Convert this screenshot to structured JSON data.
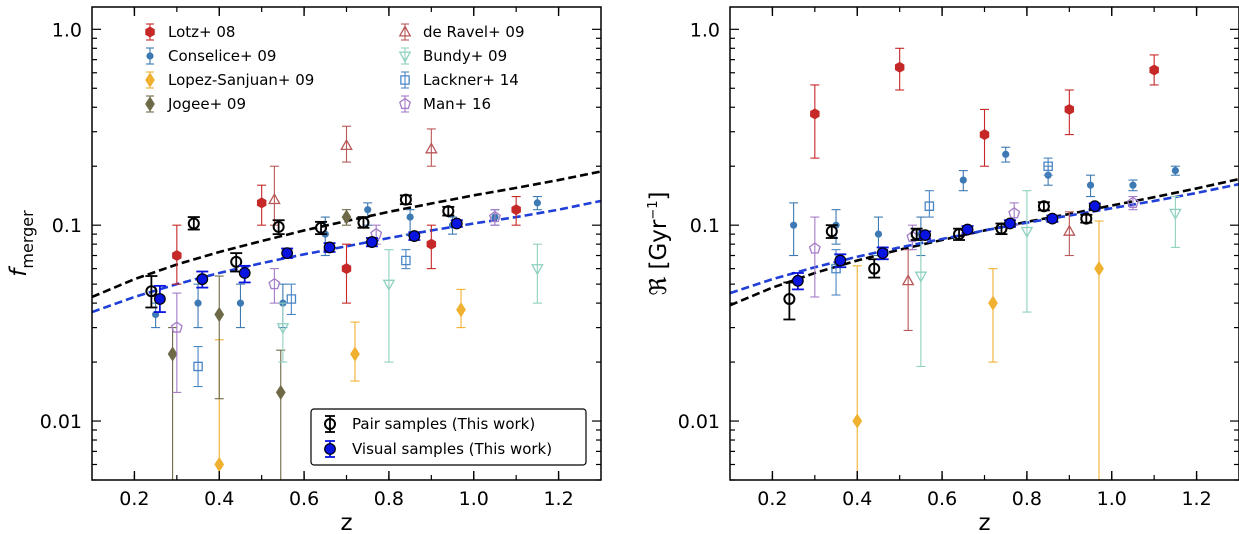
{
  "colors": {
    "lotz": "#c62828",
    "conselice": "#3d7ab3",
    "lopez": "#f0b030",
    "jogee": "#6e6a48",
    "deravel": "#b85858",
    "bundy": "#8fd0c0",
    "lackner": "#4a86c5",
    "man": "#a57cc8",
    "pair": "#000000",
    "visual": "#0a14e0",
    "fit_pair": "#000000",
    "fit_visual": "#1f3fd8"
  },
  "legend": {
    "entries": [
      {
        "key": "lotz",
        "label": "Lotz+ 08",
        "marker": "hexagon-filled"
      },
      {
        "key": "conselice",
        "label": "Conselice+ 09",
        "marker": "circle-filled-small"
      },
      {
        "key": "lopez",
        "label": "Lopez-Sanjuan+ 09",
        "marker": "diamond-filled"
      },
      {
        "key": "jogee",
        "label": "Jogee+ 09",
        "marker": "diamond-filled"
      },
      {
        "key": "deravel",
        "label": "de Ravel+ 09",
        "marker": "triangle-up-open"
      },
      {
        "key": "bundy",
        "label": "Bundy+ 09",
        "marker": "triangle-down-open"
      },
      {
        "key": "lackner",
        "label": "Lackner+ 14",
        "marker": "square-open"
      },
      {
        "key": "man",
        "label": "Man+ 16",
        "marker": "pentagon-open"
      }
    ],
    "this_work": [
      {
        "key": "pair",
        "label": "Pair samples (This work)",
        "marker": "circle-open"
      },
      {
        "key": "visual",
        "label": "Visual samples (This work)",
        "marker": "circle-filled"
      }
    ]
  },
  "chart_data": [
    {
      "type": "scatter",
      "panel": "left",
      "xlabel": "z",
      "ylabel_main": "f",
      "ylabel_sub": "merger",
      "xlim": [
        0.1,
        1.3
      ],
      "ylim": [
        0.005,
        1.3
      ],
      "yscale": "log",
      "xticks": [
        "0.2",
        "0.4",
        "0.6",
        "0.8",
        "1.0",
        "1.2"
      ],
      "yticks": [
        "0.01",
        "0.1",
        "1.0"
      ],
      "series": [
        {
          "name": "Lotz+ 08",
          "key": "lotz",
          "points": [
            [
              0.3,
              0.07,
              0.05,
              0.1
            ],
            [
              0.5,
              0.13,
              0.1,
              0.16
            ],
            [
              0.7,
              0.06,
              0.04,
              0.08
            ],
            [
              0.9,
              0.08,
              0.06,
              0.1
            ],
            [
              1.1,
              0.12,
              0.1,
              0.14
            ]
          ]
        },
        {
          "name": "Conselice+ 09",
          "key": "conselice",
          "points": [
            [
              0.25,
              0.035,
              0.03,
              0.04
            ],
            [
              0.35,
              0.04,
              0.03,
              0.05
            ],
            [
              0.45,
              0.04,
              0.03,
              0.05
            ],
            [
              0.55,
              0.04,
              0.03,
              0.05
            ],
            [
              0.65,
              0.09,
              0.07,
              0.11
            ],
            [
              0.75,
              0.12,
              0.1,
              0.13
            ],
            [
              0.85,
              0.11,
              0.09,
              0.12
            ],
            [
              0.95,
              0.1,
              0.09,
              0.11
            ],
            [
              1.05,
              0.11,
              0.1,
              0.12
            ],
            [
              1.15,
              0.13,
              0.12,
              0.14
            ]
          ]
        },
        {
          "name": "Lopez-Sanjuan+ 09",
          "key": "lopez",
          "points": [
            [
              0.4,
              0.006,
              0.003,
              0.026
            ],
            [
              0.72,
              0.022,
              0.016,
              0.032
            ],
            [
              0.97,
              0.037,
              0.03,
              0.047
            ]
          ]
        },
        {
          "name": "Jogee+ 09",
          "key": "jogee",
          "points": [
            [
              0.29,
              0.022,
              0.003,
              0.03
            ],
            [
              0.4,
              0.035,
              0.013,
              0.055
            ],
            [
              0.545,
              0.014,
              0.003,
              0.023
            ],
            [
              0.7,
              0.11,
              0.1,
              0.12
            ]
          ]
        },
        {
          "name": "de Ravel+ 09",
          "key": "deravel",
          "points": [
            [
              0.53,
              0.135,
              0.1,
              0.2
            ],
            [
              0.7,
              0.255,
              0.21,
              0.32
            ],
            [
              0.9,
              0.245,
              0.2,
              0.31
            ]
          ]
        },
        {
          "name": "Bundy+ 09",
          "key": "bundy",
          "points": [
            [
              0.55,
              0.03,
              0.02,
              0.04
            ],
            [
              0.8,
              0.05,
              0.02,
              0.075
            ],
            [
              1.15,
              0.06,
              0.04,
              0.08
            ]
          ]
        },
        {
          "name": "Lackner+ 14",
          "key": "lackner",
          "points": [
            [
              0.35,
              0.019,
              0.015,
              0.024
            ],
            [
              0.57,
              0.042,
              0.035,
              0.05
            ],
            [
              0.84,
              0.066,
              0.06,
              0.075
            ]
          ]
        },
        {
          "name": "Man+ 16",
          "key": "man",
          "points": [
            [
              0.3,
              0.03,
              0.014,
              0.045
            ],
            [
              0.53,
              0.05,
              0.04,
              0.06
            ],
            [
              0.77,
              0.09,
              0.08,
              0.1
            ],
            [
              1.05,
              0.11,
              0.1,
              0.12
            ]
          ]
        },
        {
          "name": "Pair samples (This work)",
          "key": "pair",
          "points": [
            [
              0.24,
              0.046,
              0.038,
              0.055
            ],
            [
              0.34,
              0.102,
              0.095,
              0.11
            ],
            [
              0.44,
              0.065,
              0.058,
              0.072
            ],
            [
              0.54,
              0.098,
              0.09,
              0.106
            ],
            [
              0.64,
              0.097,
              0.09,
              0.104
            ],
            [
              0.74,
              0.103,
              0.097,
              0.11
            ],
            [
              0.84,
              0.135,
              0.128,
              0.142
            ],
            [
              0.94,
              0.118,
              0.112,
              0.124
            ]
          ]
        },
        {
          "name": "Visual samples (This work)",
          "key": "visual",
          "points": [
            [
              0.26,
              0.042,
              0.036,
              0.049
            ],
            [
              0.36,
              0.053,
              0.048,
              0.058
            ],
            [
              0.46,
              0.057,
              0.051,
              0.062
            ],
            [
              0.56,
              0.072,
              0.068,
              0.076
            ],
            [
              0.66,
              0.077,
              0.073,
              0.081
            ],
            [
              0.76,
              0.082,
              0.078,
              0.086
            ],
            [
              0.86,
              0.088,
              0.084,
              0.092
            ],
            [
              0.96,
              0.102,
              0.098,
              0.106
            ]
          ]
        }
      ],
      "fits": [
        {
          "key": "fit_pair",
          "x": [
            0.1,
            0.2,
            0.3,
            0.4,
            0.5,
            0.6,
            0.7,
            0.8,
            0.9,
            1.0,
            1.1,
            1.2,
            1.3
          ],
          "y": [
            0.043,
            0.053,
            0.063,
            0.073,
            0.083,
            0.094,
            0.105,
            0.117,
            0.129,
            0.142,
            0.155,
            0.17,
            0.188
          ]
        },
        {
          "key": "fit_visual",
          "x": [
            0.1,
            0.2,
            0.3,
            0.4,
            0.5,
            0.6,
            0.7,
            0.8,
            0.9,
            1.0,
            1.1,
            1.2,
            1.3
          ],
          "y": [
            0.036,
            0.043,
            0.05,
            0.057,
            0.064,
            0.071,
            0.078,
            0.086,
            0.094,
            0.102,
            0.11,
            0.12,
            0.133
          ]
        }
      ]
    },
    {
      "type": "scatter",
      "panel": "right",
      "xlabel": "z",
      "ylabel_main": "ℜ [Gyr",
      "ylabel_sup": "−1",
      "ylabel_end": "]",
      "xlim": [
        0.1,
        1.3
      ],
      "ylim": [
        0.005,
        1.3
      ],
      "yscale": "log",
      "xticks": [
        "0.2",
        "0.4",
        "0.6",
        "0.8",
        "1.0",
        "1.2"
      ],
      "yticks": [
        "0.01",
        "0.1",
        "1.0"
      ],
      "series": [
        {
          "name": "Lotz+ 08",
          "key": "lotz",
          "points": [
            [
              0.3,
              0.37,
              0.22,
              0.52
            ],
            [
              0.5,
              0.64,
              0.49,
              0.8
            ],
            [
              0.7,
              0.29,
              0.2,
              0.39
            ],
            [
              0.9,
              0.39,
              0.29,
              0.49
            ],
            [
              1.1,
              0.62,
              0.52,
              0.74
            ]
          ]
        },
        {
          "name": "Conselice+ 09",
          "key": "conselice",
          "points": [
            [
              0.25,
              0.1,
              0.07,
              0.13
            ],
            [
              0.35,
              0.1,
              0.08,
              0.12
            ],
            [
              0.45,
              0.09,
              0.07,
              0.11
            ],
            [
              0.55,
              0.09,
              0.07,
              0.11
            ],
            [
              0.65,
              0.17,
              0.15,
              0.19
            ],
            [
              0.75,
              0.23,
              0.21,
              0.25
            ],
            [
              0.85,
              0.18,
              0.16,
              0.2
            ],
            [
              0.95,
              0.16,
              0.14,
              0.18
            ],
            [
              1.05,
              0.16,
              0.15,
              0.17
            ],
            [
              1.15,
              0.19,
              0.18,
              0.2
            ]
          ]
        },
        {
          "name": "Lopez-Sanjuan+ 09",
          "key": "lopez",
          "points": [
            [
              0.4,
              0.01,
              0.005,
              0.062
            ],
            [
              0.72,
              0.04,
              0.02,
              0.06
            ],
            [
              0.97,
              0.06,
              0.005,
              0.105
            ]
          ]
        },
        {
          "name": "de Ravel+ 09",
          "key": "deravel",
          "points": [
            [
              0.52,
              0.052,
              0.029,
              0.075
            ],
            [
              0.9,
              0.093,
              0.07,
              0.117
            ]
          ]
        },
        {
          "name": "Bundy+ 09",
          "key": "bundy",
          "points": [
            [
              0.55,
              0.055,
              0.019,
              0.085
            ],
            [
              0.8,
              0.093,
              0.036,
              0.15
            ],
            [
              1.15,
              0.115,
              0.077,
              0.14
            ]
          ]
        },
        {
          "name": "Lackner+ 14",
          "key": "lackner",
          "points": [
            [
              0.35,
              0.06,
              0.044,
              0.075
            ],
            [
              0.57,
              0.125,
              0.11,
              0.15
            ],
            [
              0.85,
              0.2,
              0.18,
              0.22
            ]
          ]
        },
        {
          "name": "Man+ 16",
          "key": "man",
          "points": [
            [
              0.3,
              0.076,
              0.043,
              0.11
            ],
            [
              0.53,
              0.087,
              0.075,
              0.1
            ],
            [
              0.77,
              0.115,
              0.1,
              0.13
            ],
            [
              1.05,
              0.13,
              0.12,
              0.14
            ]
          ]
        },
        {
          "name": "Pair samples (This work)",
          "key": "pair",
          "points": [
            [
              0.24,
              0.042,
              0.033,
              0.051
            ],
            [
              0.34,
              0.093,
              0.086,
              0.1
            ],
            [
              0.44,
              0.06,
              0.054,
              0.067
            ],
            [
              0.54,
              0.09,
              0.084,
              0.096
            ],
            [
              0.64,
              0.09,
              0.084,
              0.096
            ],
            [
              0.74,
              0.096,
              0.09,
              0.102
            ],
            [
              0.84,
              0.125,
              0.119,
              0.131
            ],
            [
              0.94,
              0.108,
              0.103,
              0.113
            ]
          ]
        },
        {
          "name": "Visual samples (This work)",
          "key": "visual",
          "points": [
            [
              0.26,
              0.052,
              0.047,
              0.057
            ],
            [
              0.36,
              0.066,
              0.061,
              0.071
            ],
            [
              0.46,
              0.072,
              0.067,
              0.077
            ],
            [
              0.56,
              0.089,
              0.085,
              0.093
            ],
            [
              0.66,
              0.095,
              0.091,
              0.099
            ],
            [
              0.76,
              0.102,
              0.098,
              0.106
            ],
            [
              0.86,
              0.108,
              0.104,
              0.112
            ],
            [
              0.96,
              0.125,
              0.121,
              0.129
            ]
          ]
        }
      ],
      "fits": [
        {
          "key": "fit_pair",
          "x": [
            0.1,
            0.2,
            0.3,
            0.4,
            0.5,
            0.6,
            0.7,
            0.8,
            0.9,
            1.0,
            1.1,
            1.2,
            1.3
          ],
          "y": [
            0.039,
            0.048,
            0.057,
            0.066,
            0.075,
            0.084,
            0.094,
            0.104,
            0.114,
            0.126,
            0.139,
            0.154,
            0.172
          ]
        },
        {
          "key": "fit_visual",
          "x": [
            0.1,
            0.2,
            0.3,
            0.4,
            0.5,
            0.6,
            0.7,
            0.8,
            0.9,
            1.0,
            1.1,
            1.2,
            1.3
          ],
          "y": [
            0.045,
            0.053,
            0.061,
            0.069,
            0.077,
            0.085,
            0.094,
            0.103,
            0.112,
            0.122,
            0.133,
            0.146,
            0.162
          ]
        }
      ]
    }
  ]
}
